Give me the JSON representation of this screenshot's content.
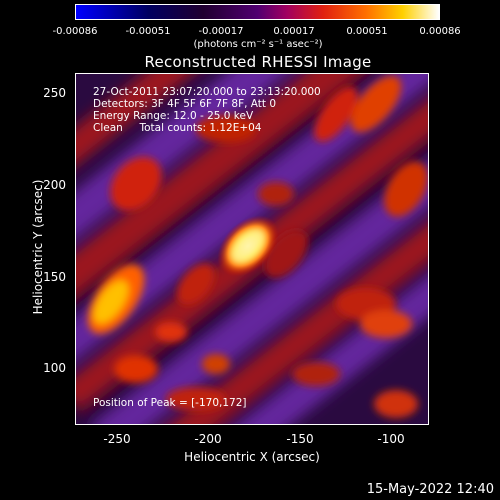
{
  "colorbar": {
    "ticks": [
      "-0.00086",
      "-0.00051",
      "-0.00017",
      "0.00017",
      "0.00051",
      "0.00086"
    ],
    "unit": "(photons cm⁻² s⁻¹ asec⁻²)",
    "colors": [
      "#0000ff",
      "#000040",
      "#200030",
      "#600080",
      "#c00020",
      "#ff6000",
      "#ffd000",
      "#ffffff"
    ]
  },
  "title": "Reconstructed RHESSI Image",
  "info": {
    "time": "27-Oct-2011 23:07:20.000 to 23:13:20.000",
    "detectors": "Detectors: 3F 4F 5F 6F 7F 8F, Att 0",
    "energy": "Energy Range: 12.0 - 25.0 keV",
    "clean": "Clean     Total counts: 1.12E+04",
    "peak": "Position of Peak = [-170,172]"
  },
  "axes": {
    "xlabel": "Heliocentric X (arcsec)",
    "ylabel": "Heliocentric Y (arcsec)",
    "xticks": [
      "-250",
      "-200",
      "-150",
      "-100"
    ],
    "yticks": [
      "250",
      "200",
      "150",
      "100"
    ]
  },
  "footer": "15-May-2022 12:40"
}
